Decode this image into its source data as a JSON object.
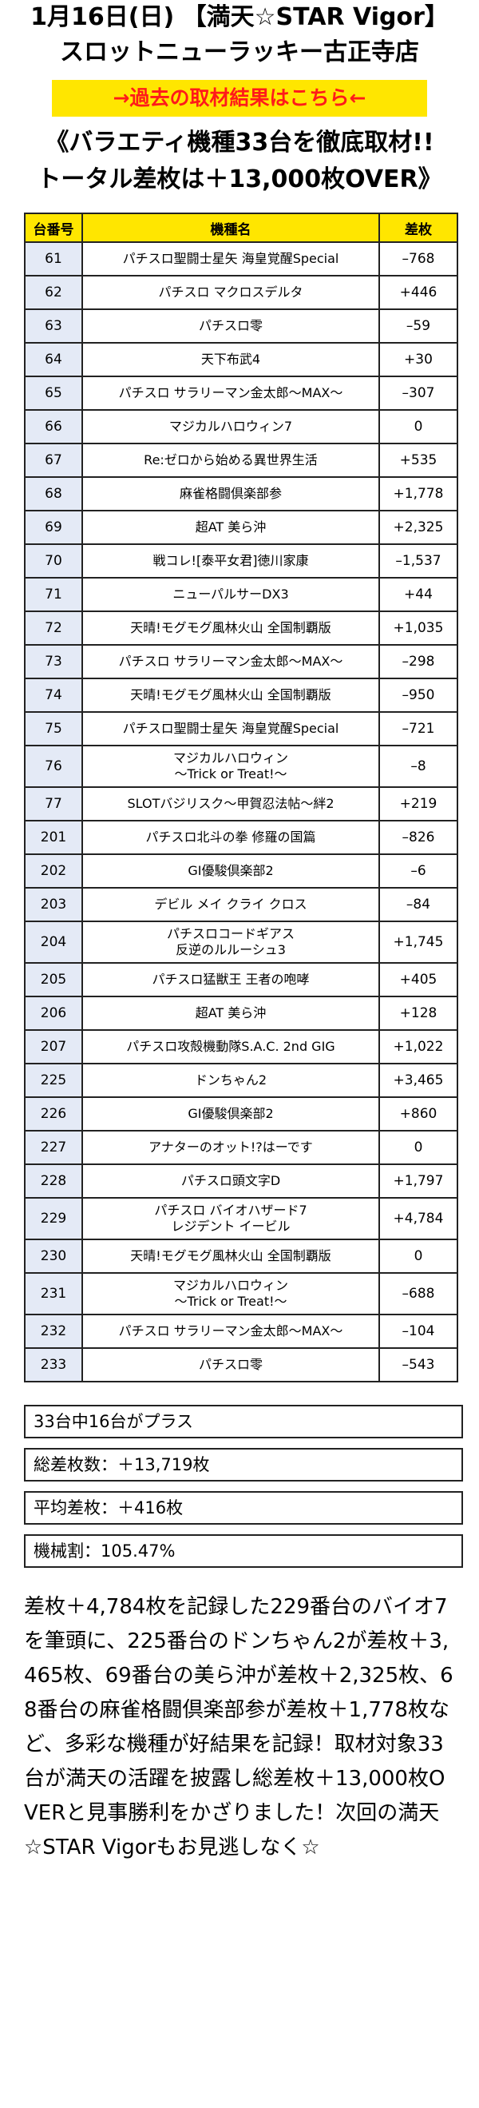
{
  "header": {
    "line1": "1月16日(日) 【満天☆STAR Vigor】",
    "line2": "スロットニューラッキー古正寺店",
    "link_label": "→過去の取材結果はこちら←",
    "headline1": "《バラエティ機種33台を徹底取材!!",
    "headline2": "トータル差枚は＋13,000枚OVER》"
  },
  "table": {
    "headers": [
      "台番号",
      "機種名",
      "差枚"
    ],
    "rows": [
      {
        "no": "61",
        "name": "パチスロ聖闘士星矢 海皇覚醒Special",
        "diff": "–768"
      },
      {
        "no": "62",
        "name": "パチスロ マクロスデルタ",
        "diff": "+446"
      },
      {
        "no": "63",
        "name": "パチスロ零",
        "diff": "–59"
      },
      {
        "no": "64",
        "name": "天下布武4",
        "diff": "+30"
      },
      {
        "no": "65",
        "name": "パチスロ サラリーマン金太郎〜MAX〜",
        "diff": "–307"
      },
      {
        "no": "66",
        "name": "マジカルハロウィン7",
        "diff": "0"
      },
      {
        "no": "67",
        "name": "Re:ゼロから始める異世界生活",
        "diff": "+535"
      },
      {
        "no": "68",
        "name": "麻雀格闘倶楽部参",
        "diff": "+1,778"
      },
      {
        "no": "69",
        "name": "超AT 美ら沖",
        "diff": "+2,325"
      },
      {
        "no": "70",
        "name": "戦コレ![泰平女君]徳川家康",
        "diff": "–1,537"
      },
      {
        "no": "71",
        "name": "ニューパルサーDX3",
        "diff": "+44"
      },
      {
        "no": "72",
        "name": "天晴!モグモグ風林火山 全国制覇版",
        "diff": "+1,035"
      },
      {
        "no": "73",
        "name": "パチスロ サラリーマン金太郎〜MAX〜",
        "diff": "–298"
      },
      {
        "no": "74",
        "name": "天晴!モグモグ風林火山 全国制覇版",
        "diff": "–950"
      },
      {
        "no": "75",
        "name": "パチスロ聖闘士星矢 海皇覚醒Special",
        "diff": "–721"
      },
      {
        "no": "76",
        "name": "マジカルハロウィン",
        "name2": "〜Trick or Treat!〜",
        "diff": "–8"
      },
      {
        "no": "77",
        "name": "SLOTバジリスク〜甲賀忍法帖〜絆2",
        "diff": "+219"
      },
      {
        "no": "201",
        "name": "パチスロ北斗の拳 修羅の国篇",
        "diff": "–826"
      },
      {
        "no": "202",
        "name": "GI優駿倶楽部2",
        "diff": "–6"
      },
      {
        "no": "203",
        "name": "デビル メイ クライ クロス",
        "diff": "–84"
      },
      {
        "no": "204",
        "name": "パチスロコードギアス",
        "name2": "反逆のルルーシュ3",
        "diff": "+1,745"
      },
      {
        "no": "205",
        "name": "パチスロ猛獣王 王者の咆哮",
        "diff": "+405"
      },
      {
        "no": "206",
        "name": "超AT 美ら沖",
        "diff": "+128"
      },
      {
        "no": "207",
        "name": "パチスロ攻殻機動隊S.A.C. 2nd GIG",
        "diff": "+1,022"
      },
      {
        "no": "225",
        "name": "ドンちゃん2",
        "diff": "+3,465"
      },
      {
        "no": "226",
        "name": "GI優駿倶楽部2",
        "diff": "+860"
      },
      {
        "no": "227",
        "name": "アナターのオット!?はーです",
        "diff": "0"
      },
      {
        "no": "228",
        "name": "パチスロ頭文字D",
        "diff": "+1,797"
      },
      {
        "no": "229",
        "name": "パチスロ バイオハザード7",
        "name2": "レジデント イービル",
        "diff": "+4,784"
      },
      {
        "no": "230",
        "name": "天晴!モグモグ風林火山 全国制覇版",
        "diff": "0"
      },
      {
        "no": "231",
        "name": "マジカルハロウィン",
        "name2": "〜Trick or Treat!〜",
        "diff": "–688"
      },
      {
        "no": "232",
        "name": "パチスロ サラリーマン金太郎〜MAX〜",
        "diff": "–104"
      },
      {
        "no": "233",
        "name": "パチスロ零",
        "diff": "–543"
      }
    ]
  },
  "summary": {
    "plus_count": "33台中16台がプラス",
    "total": "総差枚数：＋13,719枚",
    "average": "平均差枚：＋416枚",
    "payout": "機械割：105.47%"
  },
  "closing": "差枚＋4,784枚を記録した229番台のバイオ7を筆頭に、225番台のドンちゃん2が差枚＋3,465枚、69番台の美ら沖が差枚＋2,325枚、68番台の麻雀格闘倶楽部参が差枚＋1,778枚など、多彩な機種が好結果を記録！取材対象33台が満天の活躍を披露し総差枚＋13,000枚OVERと見事勝利をかざりました！次回の満天☆STAR Vigorもお見逃しなく☆"
}
